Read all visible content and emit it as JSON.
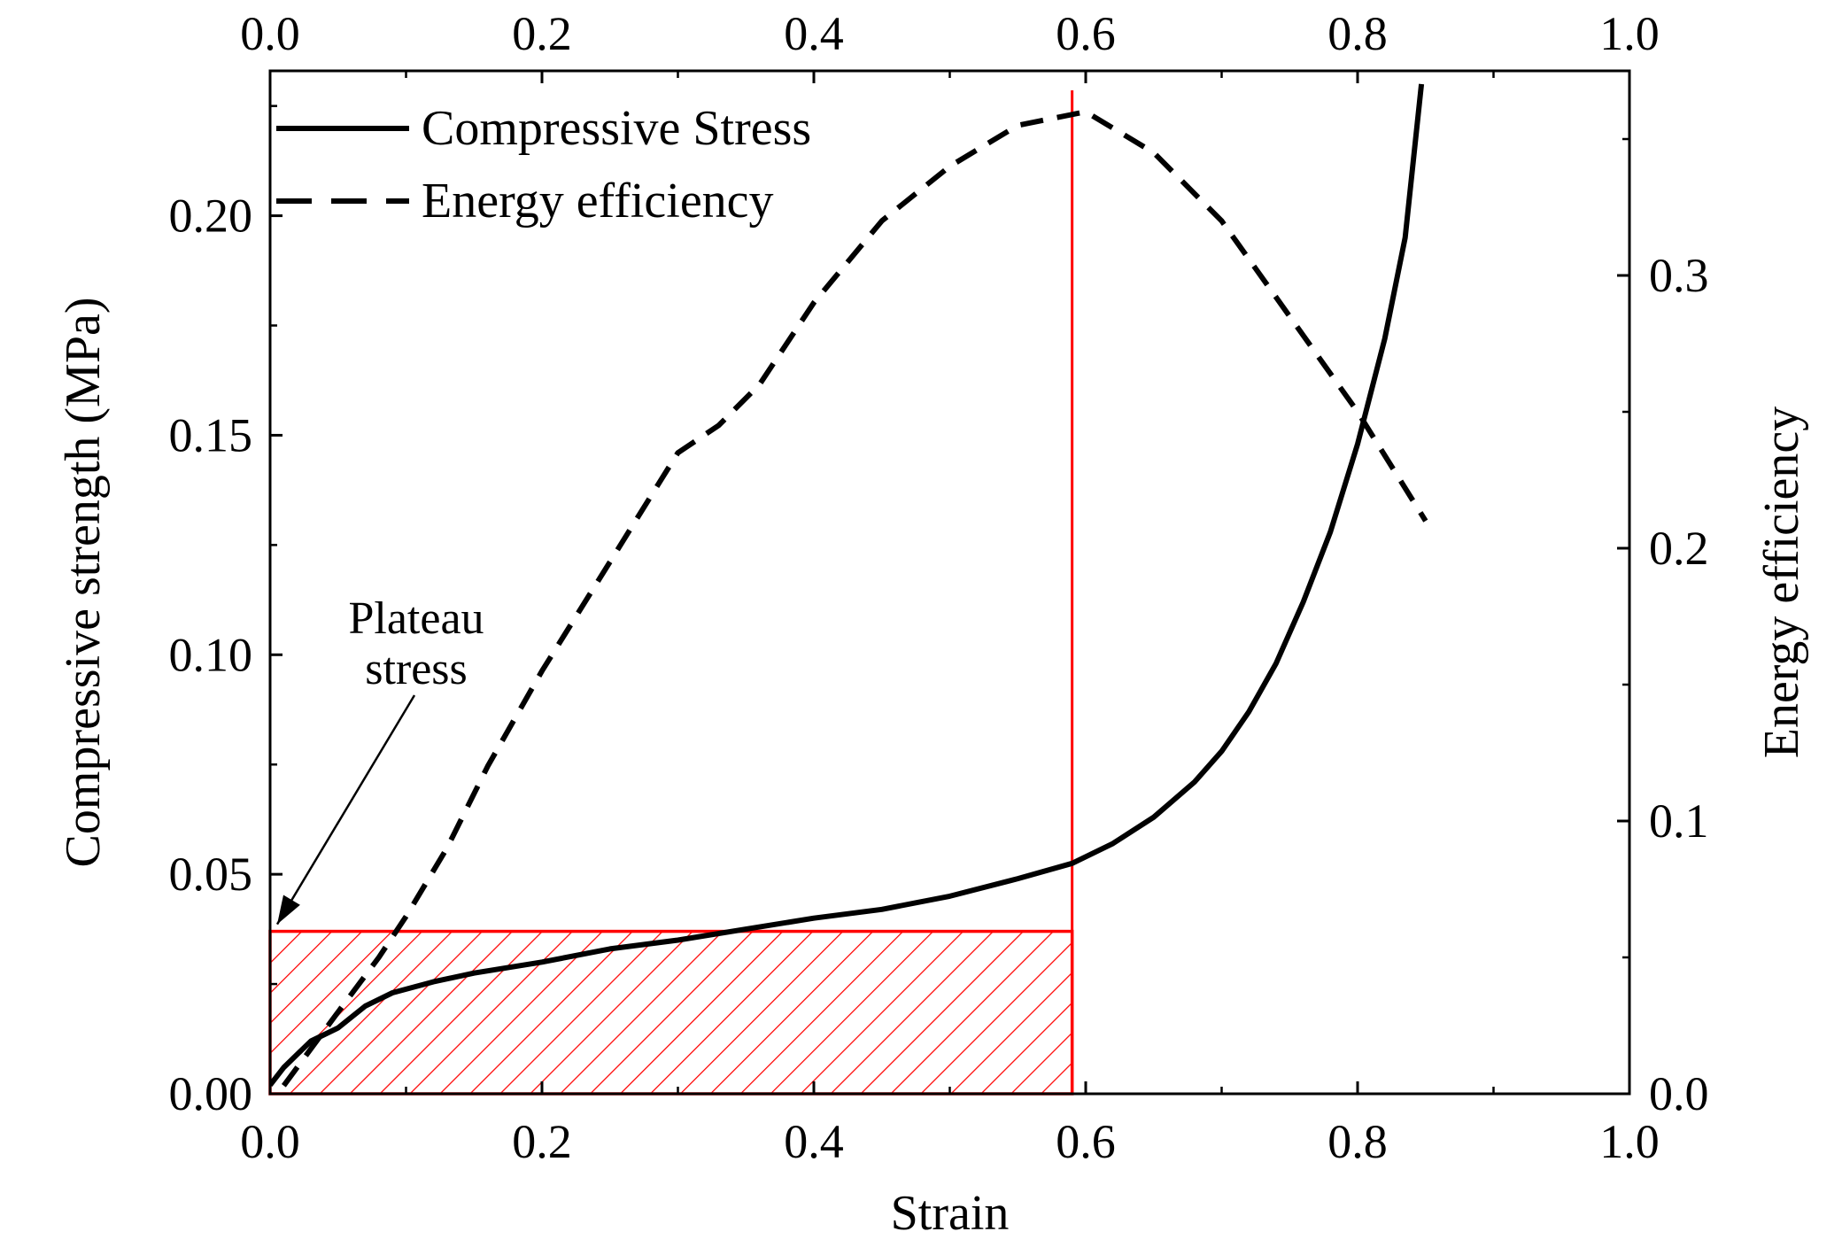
{
  "chart_data": {
    "type": "line",
    "title": "",
    "xlabel": "Strain",
    "ylabel": "Compressive strength (MPa)",
    "y2label": "Energy efficiency",
    "xlim": [
      0.0,
      1.0
    ],
    "ylim": [
      0.0,
      0.233
    ],
    "y2lim": [
      0.0,
      0.375
    ],
    "x_ticks": [
      "0.0",
      "0.2",
      "0.4",
      "0.6",
      "0.8",
      "1.0"
    ],
    "x_top_ticks": [
      "0.0",
      "0.2",
      "0.4",
      "0.6",
      "0.8",
      "1.0"
    ],
    "y_ticks": [
      "0.00",
      "0.05",
      "0.10",
      "0.15",
      "0.20"
    ],
    "y2_ticks": [
      "0.0",
      "0.1",
      "0.2",
      "0.3"
    ],
    "legend": {
      "position": "top-left"
    },
    "series": [
      {
        "name": "Compressive Stress",
        "axis": "left",
        "style": "solid",
        "color": "#000000",
        "x": [
          0.0,
          0.01,
          0.02,
          0.03,
          0.05,
          0.07,
          0.09,
          0.12,
          0.15,
          0.2,
          0.25,
          0.3,
          0.35,
          0.4,
          0.45,
          0.5,
          0.55,
          0.59,
          0.62,
          0.65,
          0.68,
          0.7,
          0.72,
          0.74,
          0.76,
          0.78,
          0.8,
          0.82,
          0.835,
          0.847
        ],
        "y": [
          0.002,
          0.006,
          0.009,
          0.012,
          0.015,
          0.02,
          0.023,
          0.0255,
          0.0275,
          0.03,
          0.033,
          0.035,
          0.0375,
          0.04,
          0.042,
          0.045,
          0.049,
          0.0525,
          0.057,
          0.063,
          0.071,
          0.078,
          0.087,
          0.098,
          0.112,
          0.128,
          0.148,
          0.172,
          0.195,
          0.23
        ]
      },
      {
        "name": "Energy efficiency",
        "axis": "right",
        "style": "dashed",
        "color": "#000000",
        "x": [
          0.01,
          0.05,
          0.08,
          0.1,
          0.13,
          0.16,
          0.2,
          0.25,
          0.3,
          0.33,
          0.36,
          0.4,
          0.45,
          0.5,
          0.55,
          0.6,
          0.65,
          0.7,
          0.75,
          0.8,
          0.85
        ],
        "y": [
          0.003,
          0.03,
          0.05,
          0.065,
          0.09,
          0.12,
          0.155,
          0.195,
          0.235,
          0.245,
          0.26,
          0.29,
          0.32,
          0.34,
          0.355,
          0.36,
          0.345,
          0.32,
          0.285,
          0.25,
          0.21
        ]
      }
    ],
    "plateau": {
      "strain": 0.59,
      "stress": 0.037,
      "color": "#ff0000",
      "annotation": [
        "Plateau",
        "stress"
      ]
    }
  }
}
